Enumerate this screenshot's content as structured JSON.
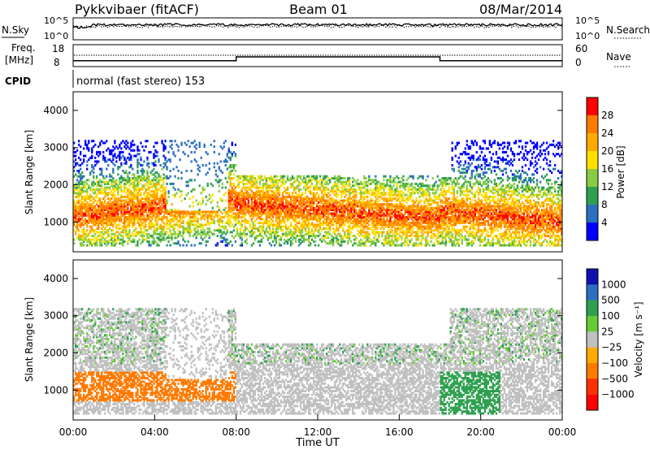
{
  "header": {
    "station": "Pykkvibaer (fitACF)",
    "beam": "Beam 01",
    "date": "08/Mar/2014"
  },
  "top_panels": {
    "noise": {
      "left_label": "N.Sky",
      "right_label": "N.Search",
      "left_ticks": [
        "10^5",
        "10^0"
      ],
      "right_ticks": [
        "10^5",
        "10^0"
      ]
    },
    "freq": {
      "left_label_1": "Freq.",
      "left_label_2": "[MHz]",
      "left_ticks": [
        "18",
        "8"
      ],
      "right_label": "Nave",
      "right_ticks": [
        "60",
        "0"
      ],
      "steps": [
        {
          "from_hour": 0,
          "to_hour": 8,
          "value_mhz": 10.5
        },
        {
          "from_hour": 8,
          "to_hour": 18,
          "value_mhz": 12.4
        },
        {
          "from_hour": 18,
          "to_hour": 24,
          "value_mhz": 10.5
        }
      ]
    },
    "cpid": {
      "label": "CPID",
      "text": "normal (fast stereo) 153"
    }
  },
  "chart_data": [
    {
      "type": "heatmap",
      "name": "Power",
      "xlabel": "",
      "ylabel": "Slant Range [km]",
      "xlim": [
        0,
        24
      ],
      "ylim": [
        200,
        4500
      ],
      "yticks": [
        "4000",
        "3000",
        "2000",
        "1000"
      ],
      "colorbar": {
        "label": "Power [dB]",
        "ticks": [
          "28",
          "24",
          "20",
          "16",
          "12",
          "8",
          "4"
        ],
        "colors": [
          "#ff0000",
          "#ff7a00",
          "#ffaa00",
          "#ffe000",
          "#88cc44",
          "#2fa050",
          "#2a6fc0",
          "#0000ff"
        ]
      }
    },
    {
      "type": "heatmap",
      "name": "Velocity",
      "xlabel": "Time UT",
      "ylabel": "Slant Range [km]",
      "xlim": [
        0,
        24
      ],
      "ylim": [
        200,
        4500
      ],
      "yticks": [
        "4000",
        "3000",
        "2000",
        "1000"
      ],
      "xticks": [
        "00:00",
        "04:00",
        "08:00",
        "12:00",
        "16:00",
        "20:00",
        "00:00"
      ],
      "colorbar": {
        "label": "Velocity [m s⁻¹]",
        "ticks": [
          "1000",
          "500",
          "100",
          "25",
          "−25",
          "−100",
          "−500",
          "−1000"
        ],
        "colors": [
          "#1010b0",
          "#2a6fc0",
          "#2fa050",
          "#66cc33",
          "#c0c0c0",
          "#ffaa00",
          "#ff7a00",
          "#ff3000",
          "#ff0000"
        ]
      }
    }
  ]
}
